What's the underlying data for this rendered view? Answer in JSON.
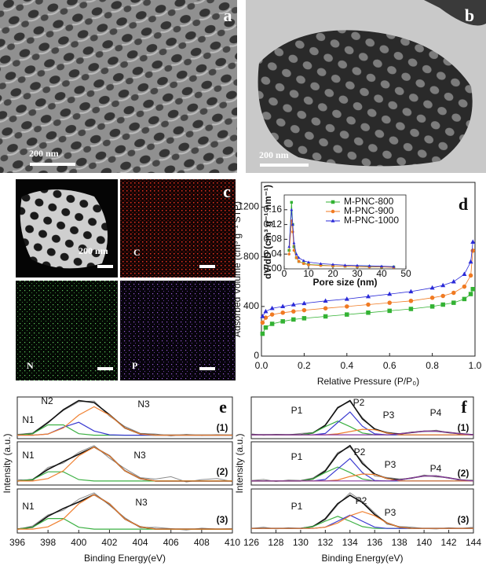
{
  "images": {
    "a": {
      "label": "a",
      "scale_bar": "200 nm"
    },
    "b": {
      "label": "b",
      "scale_bar": "200 nm"
    },
    "c": {
      "label": "c",
      "scale_bar": "200 nm",
      "maps": [
        "C",
        "N",
        "P"
      ]
    }
  },
  "chart_data": [
    {
      "type": "line",
      "panel_label": "d",
      "xlabel": "Relative Pressure (P/P₀)",
      "ylabel": "Adsorbed Volume (cm³ g⁻¹ STP)",
      "xlim": [
        0,
        1
      ],
      "ylim": [
        0,
        1400
      ],
      "xticks": [
        {
          "value": 0,
          "label": "0.0"
        },
        0.2,
        0.4,
        0.6,
        0.8,
        {
          "value": 1,
          "label": "1.0"
        }
      ],
      "yticks": [
        0,
        400,
        800,
        1200
      ],
      "x": [
        0.005,
        0.02,
        0.05,
        0.1,
        0.15,
        0.2,
        0.3,
        0.4,
        0.5,
        0.6,
        0.7,
        0.8,
        0.85,
        0.9,
        0.95,
        0.98,
        0.99
      ],
      "series": [
        {
          "color": "#33b233",
          "marker": "square",
          "values": [
            180,
            230,
            260,
            280,
            295,
            305,
            320,
            335,
            350,
            365,
            380,
            400,
            415,
            430,
            460,
            500,
            540
          ]
        },
        {
          "color": "#f07a22",
          "marker": "circle",
          "values": [
            270,
            310,
            335,
            350,
            360,
            370,
            385,
            400,
            415,
            430,
            445,
            470,
            485,
            510,
            560,
            650,
            850
          ]
        },
        {
          "color": "#2a2ad8",
          "marker": "triangle",
          "values": [
            320,
            360,
            385,
            400,
            415,
            425,
            445,
            460,
            480,
            500,
            520,
            550,
            570,
            600,
            660,
            760,
            920
          ]
        }
      ]
    },
    {
      "type": "line",
      "xlabel": "Pore size (nm)",
      "ylabel": "dV/dD (cm³ g⁻¹ nm⁻¹)",
      "xlim": [
        0,
        50
      ],
      "ylim": [
        0,
        0.2
      ],
      "xticks": [
        0,
        10,
        20,
        30,
        40,
        50
      ],
      "yticks": [
        {
          "value": 0,
          "label": "0.00"
        },
        0.04,
        0.08,
        0.12,
        0.16
      ],
      "legend": "upper right",
      "x": [
        2,
        3,
        3.5,
        4,
        5,
        6,
        8,
        10,
        15,
        20,
        25,
        30,
        35,
        40,
        45
      ],
      "series": [
        {
          "name": "M-PNC-800",
          "color": "#33b233",
          "marker": "square",
          "values": [
            0.05,
            0.18,
            0.12,
            0.06,
            0.03,
            0.02,
            0.015,
            0.012,
            0.01,
            0.008,
            0.007,
            0.006,
            0.006,
            0.005,
            0.005
          ]
        },
        {
          "name": "M-PNC-900",
          "color": "#f07a22",
          "marker": "circle",
          "values": [
            0.04,
            0.13,
            0.1,
            0.05,
            0.03,
            0.02,
            0.014,
            0.011,
            0.009,
            0.008,
            0.007,
            0.006,
            0.005,
            0.005,
            0.004
          ]
        },
        {
          "name": "M-PNC-1000",
          "color": "#2a2ad8",
          "marker": "triangle",
          "values": [
            0.06,
            0.16,
            0.12,
            0.07,
            0.04,
            0.03,
            0.022,
            0.018,
            0.014,
            0.012,
            0.01,
            0.009,
            0.008,
            0.007,
            0.006
          ]
        }
      ]
    },
    {
      "type": "line",
      "panel_label": "e",
      "tag": "(1)",
      "annotations": [
        "N1",
        "N2",
        "N3"
      ],
      "xlim": [
        396,
        410
      ],
      "x": [
        396,
        397,
        398,
        399,
        400,
        401,
        402,
        403,
        404,
        405,
        406,
        407,
        408,
        409,
        410
      ],
      "series": [
        {
          "color": "#8c8c8c",
          "values": [
            0.07,
            0.11,
            0.4,
            0.7,
            0.93,
            0.95,
            0.55,
            0.28,
            0.1,
            0.08,
            0.03,
            0.07,
            0.04,
            0.06,
            0.05
          ]
        },
        {
          "color": "#111111",
          "values": [
            0.05,
            0.09,
            0.38,
            0.72,
            0.96,
            0.91,
            0.59,
            0.24,
            0.08,
            0.05,
            0.05,
            0.05,
            0.05,
            0.05,
            0.05
          ]
        },
        {
          "color": "#3cb043",
          "values": [
            0.05,
            0.09,
            0.32,
            0.32,
            0.09,
            0.05,
            0.05,
            0.05,
            0.05,
            0.05,
            0.05,
            0.05,
            0.05,
            0.05,
            0.05
          ]
        },
        {
          "color": "#3a3ad0",
          "values": [
            0.05,
            0.05,
            0.08,
            0.26,
            0.39,
            0.16,
            0.06,
            0.05,
            0.05,
            0.05,
            0.05,
            0.05,
            0.05,
            0.05,
            0.05
          ]
        },
        {
          "color": "#f08030",
          "values": [
            0.05,
            0.05,
            0.08,
            0.24,
            0.58,
            0.8,
            0.58,
            0.24,
            0.08,
            0.05,
            0.05,
            0.05,
            0.05,
            0.05,
            0.05
          ]
        }
      ]
    },
    {
      "type": "line",
      "ylabel": "Intensity (a.u.)",
      "tag": "(2)",
      "annotations": [
        "N1",
        "N3"
      ],
      "xlim": [
        396,
        410
      ],
      "x": [
        396,
        397,
        398,
        399,
        400,
        401,
        402,
        403,
        404,
        405,
        406,
        407,
        408,
        409,
        410
      ],
      "series": [
        {
          "color": "#8c8c8c",
          "values": [
            0.08,
            0.06,
            0.33,
            0.42,
            0.64,
            0.78,
            0.52,
            0.31,
            0.12,
            0.09,
            0.14,
            0.03,
            0.08,
            0.1,
            0.04
          ]
        },
        {
          "color": "#111111",
          "values": [
            0.05,
            0.08,
            0.29,
            0.45,
            0.6,
            0.75,
            0.57,
            0.26,
            0.1,
            0.05,
            0.05,
            0.05,
            0.05,
            0.05,
            0.05
          ]
        },
        {
          "color": "#3cb043",
          "values": [
            0.05,
            0.08,
            0.24,
            0.24,
            0.08,
            0.05,
            0.05,
            0.05,
            0.05,
            0.05,
            0.05,
            0.05,
            0.05,
            0.05,
            0.05
          ]
        },
        {
          "color": "#f08030",
          "values": [
            0.05,
            0.05,
            0.1,
            0.26,
            0.57,
            0.75,
            0.57,
            0.26,
            0.1,
            0.05,
            0.05,
            0.05,
            0.05,
            0.05,
            0.05
          ]
        }
      ]
    },
    {
      "type": "line",
      "xlabel": "Binding Energy(eV)",
      "tag": "(3)",
      "annotations": [
        "N1",
        "N3"
      ],
      "xlim": [
        396,
        410
      ],
      "xticks": [
        396,
        398,
        400,
        402,
        404,
        406,
        408,
        410
      ],
      "x": [
        396,
        397,
        398,
        399,
        400,
        401,
        402,
        403,
        404,
        405,
        406,
        407,
        408,
        409,
        410
      ],
      "series": [
        {
          "color": "#8c8c8c",
          "values": [
            0.04,
            0.12,
            0.36,
            0.46,
            0.7,
            0.84,
            0.57,
            0.3,
            0.08,
            0.09,
            0.06,
            0.03,
            0.07,
            0.05,
            0.06
          ]
        },
        {
          "color": "#111111",
          "values": [
            0.05,
            0.09,
            0.33,
            0.5,
            0.64,
            0.8,
            0.6,
            0.27,
            0.1,
            0.05,
            0.05,
            0.05,
            0.05,
            0.05,
            0.05
          ]
        },
        {
          "color": "#3cb043",
          "values": [
            0.05,
            0.09,
            0.28,
            0.28,
            0.09,
            0.05,
            0.05,
            0.05,
            0.05,
            0.05,
            0.05,
            0.05,
            0.05,
            0.05,
            0.05
          ]
        },
        {
          "color": "#f08030",
          "values": [
            0.05,
            0.05,
            0.1,
            0.27,
            0.6,
            0.8,
            0.6,
            0.27,
            0.1,
            0.05,
            0.05,
            0.05,
            0.05,
            0.05,
            0.05
          ]
        }
      ]
    },
    {
      "type": "line",
      "panel_label": "f",
      "tag": "(1)",
      "annotations": [
        "P1",
        "P2",
        "P3",
        "P4"
      ],
      "xlim": [
        126,
        144
      ],
      "x": [
        126,
        127,
        128,
        129,
        130,
        131,
        132,
        133,
        134,
        135,
        136,
        137,
        138,
        139,
        140,
        141,
        142,
        143,
        144
      ],
      "series": [
        {
          "color": "#8c8c8c",
          "values": [
            0.07,
            0.04,
            0.06,
            0.05,
            0.08,
            0.1,
            0.25,
            0.66,
            0.78,
            0.43,
            0.16,
            0.11,
            0.06,
            0.11,
            0.12,
            0.15,
            0.09,
            0.08,
            0.05
          ]
        },
        {
          "color": "#111111",
          "values": [
            0.05,
            0.05,
            0.05,
            0.05,
            0.05,
            0.09,
            0.26,
            0.64,
            0.8,
            0.4,
            0.18,
            0.09,
            0.07,
            0.1,
            0.13,
            0.13,
            0.1,
            0.07,
            0.05
          ]
        },
        {
          "color": "#3cb043",
          "values": [
            0.05,
            0.05,
            0.05,
            0.05,
            0.05,
            0.09,
            0.23,
            0.35,
            0.23,
            0.09,
            0.05,
            0.05,
            0.05,
            0.05,
            0.05,
            0.05,
            0.05,
            0.05,
            0.05
          ]
        },
        {
          "color": "#3a3ad0",
          "values": [
            0.05,
            0.05,
            0.05,
            0.05,
            0.05,
            0.05,
            0.08,
            0.32,
            0.55,
            0.24,
            0.07,
            0.05,
            0.05,
            0.05,
            0.05,
            0.05,
            0.05,
            0.05,
            0.05
          ]
        },
        {
          "color": "#f08030",
          "values": [
            0.05,
            0.05,
            0.05,
            0.05,
            0.05,
            0.05,
            0.05,
            0.07,
            0.12,
            0.17,
            0.16,
            0.09,
            0.05,
            0.05,
            0.05,
            0.05,
            0.05,
            0.05,
            0.05
          ]
        },
        {
          "color": "#8a3aa0",
          "values": [
            0.05,
            0.05,
            0.05,
            0.05,
            0.05,
            0.05,
            0.05,
            0.05,
            0.05,
            0.05,
            0.05,
            0.05,
            0.07,
            0.1,
            0.13,
            0.13,
            0.1,
            0.07,
            0.05
          ]
        }
      ]
    },
    {
      "type": "line",
      "ylabel": "Intensity (a.u.)",
      "tag": "(2)",
      "annotations": [
        "P1",
        "P2",
        "P3",
        "P4"
      ],
      "xlim": [
        126,
        144
      ],
      "x": [
        126,
        127,
        128,
        129,
        130,
        131,
        132,
        133,
        134,
        135,
        136,
        137,
        138,
        139,
        140,
        141,
        142,
        143,
        144
      ],
      "series": [
        {
          "color": "#8c8c8c",
          "values": [
            0.06,
            0.08,
            0.04,
            0.07,
            0.06,
            0.11,
            0.27,
            0.62,
            0.73,
            0.44,
            0.15,
            0.12,
            0.09,
            0.1,
            0.17,
            0.13,
            0.12,
            0.05,
            0.07
          ]
        },
        {
          "color": "#111111",
          "values": [
            0.05,
            0.05,
            0.05,
            0.05,
            0.05,
            0.09,
            0.25,
            0.59,
            0.76,
            0.4,
            0.19,
            0.1,
            0.07,
            0.11,
            0.15,
            0.15,
            0.11,
            0.07,
            0.05
          ]
        },
        {
          "color": "#3cb043",
          "values": [
            0.05,
            0.05,
            0.05,
            0.05,
            0.05,
            0.09,
            0.22,
            0.33,
            0.22,
            0.09,
            0.05,
            0.05,
            0.05,
            0.05,
            0.05,
            0.05,
            0.05,
            0.05,
            0.05
          ]
        },
        {
          "color": "#3a3ad0",
          "values": [
            0.05,
            0.05,
            0.05,
            0.05,
            0.05,
            0.05,
            0.08,
            0.29,
            0.5,
            0.22,
            0.06,
            0.05,
            0.05,
            0.05,
            0.05,
            0.05,
            0.05,
            0.05,
            0.05
          ]
        },
        {
          "color": "#f08030",
          "values": [
            0.05,
            0.05,
            0.05,
            0.05,
            0.05,
            0.05,
            0.05,
            0.07,
            0.14,
            0.19,
            0.18,
            0.1,
            0.05,
            0.05,
            0.05,
            0.05,
            0.05,
            0.05,
            0.05
          ]
        },
        {
          "color": "#8a3aa0",
          "values": [
            0.05,
            0.05,
            0.05,
            0.05,
            0.05,
            0.05,
            0.05,
            0.05,
            0.05,
            0.05,
            0.05,
            0.05,
            0.07,
            0.11,
            0.15,
            0.15,
            0.11,
            0.07,
            0.05
          ]
        }
      ]
    },
    {
      "type": "line",
      "xlabel": "Binding Energy(eV)",
      "tag": "(3)",
      "annotations": [
        "P1",
        "P2",
        "P3"
      ],
      "xlim": [
        126,
        144
      ],
      "xticks": [
        126,
        128,
        130,
        132,
        134,
        136,
        138,
        140,
        142,
        144
      ],
      "x": [
        126,
        127,
        128,
        129,
        130,
        131,
        132,
        133,
        134,
        135,
        136,
        137,
        138,
        139,
        140,
        141,
        142,
        143,
        144
      ],
      "series": [
        {
          "color": "#8c8c8c",
          "values": [
            0.05,
            0.07,
            0.04,
            0.06,
            0.05,
            0.09,
            0.19,
            0.44,
            0.64,
            0.5,
            0.31,
            0.12,
            0.08,
            0.07,
            0.05,
            0.04,
            0.06,
            0.05,
            0.07
          ]
        },
        {
          "color": "#111111",
          "values": [
            0.05,
            0.05,
            0.05,
            0.05,
            0.05,
            0.08,
            0.21,
            0.46,
            0.6,
            0.48,
            0.28,
            0.14,
            0.07,
            0.05,
            0.05,
            0.05,
            0.05,
            0.05,
            0.05
          ]
        },
        {
          "color": "#3cb043",
          "values": [
            0.05,
            0.05,
            0.05,
            0.05,
            0.05,
            0.08,
            0.17,
            0.25,
            0.17,
            0.08,
            0.05,
            0.05,
            0.05,
            0.05,
            0.05,
            0.05,
            0.05,
            0.05,
            0.05
          ]
        },
        {
          "color": "#3a3ad0",
          "values": [
            0.05,
            0.05,
            0.05,
            0.05,
            0.05,
            0.05,
            0.07,
            0.17,
            0.27,
            0.17,
            0.07,
            0.05,
            0.05,
            0.05,
            0.05,
            0.05,
            0.05,
            0.05,
            0.05
          ]
        },
        {
          "color": "#f08030",
          "values": [
            0.05,
            0.05,
            0.05,
            0.05,
            0.05,
            0.05,
            0.07,
            0.14,
            0.26,
            0.33,
            0.26,
            0.14,
            0.07,
            0.05,
            0.05,
            0.05,
            0.05,
            0.05,
            0.05
          ]
        }
      ]
    }
  ]
}
